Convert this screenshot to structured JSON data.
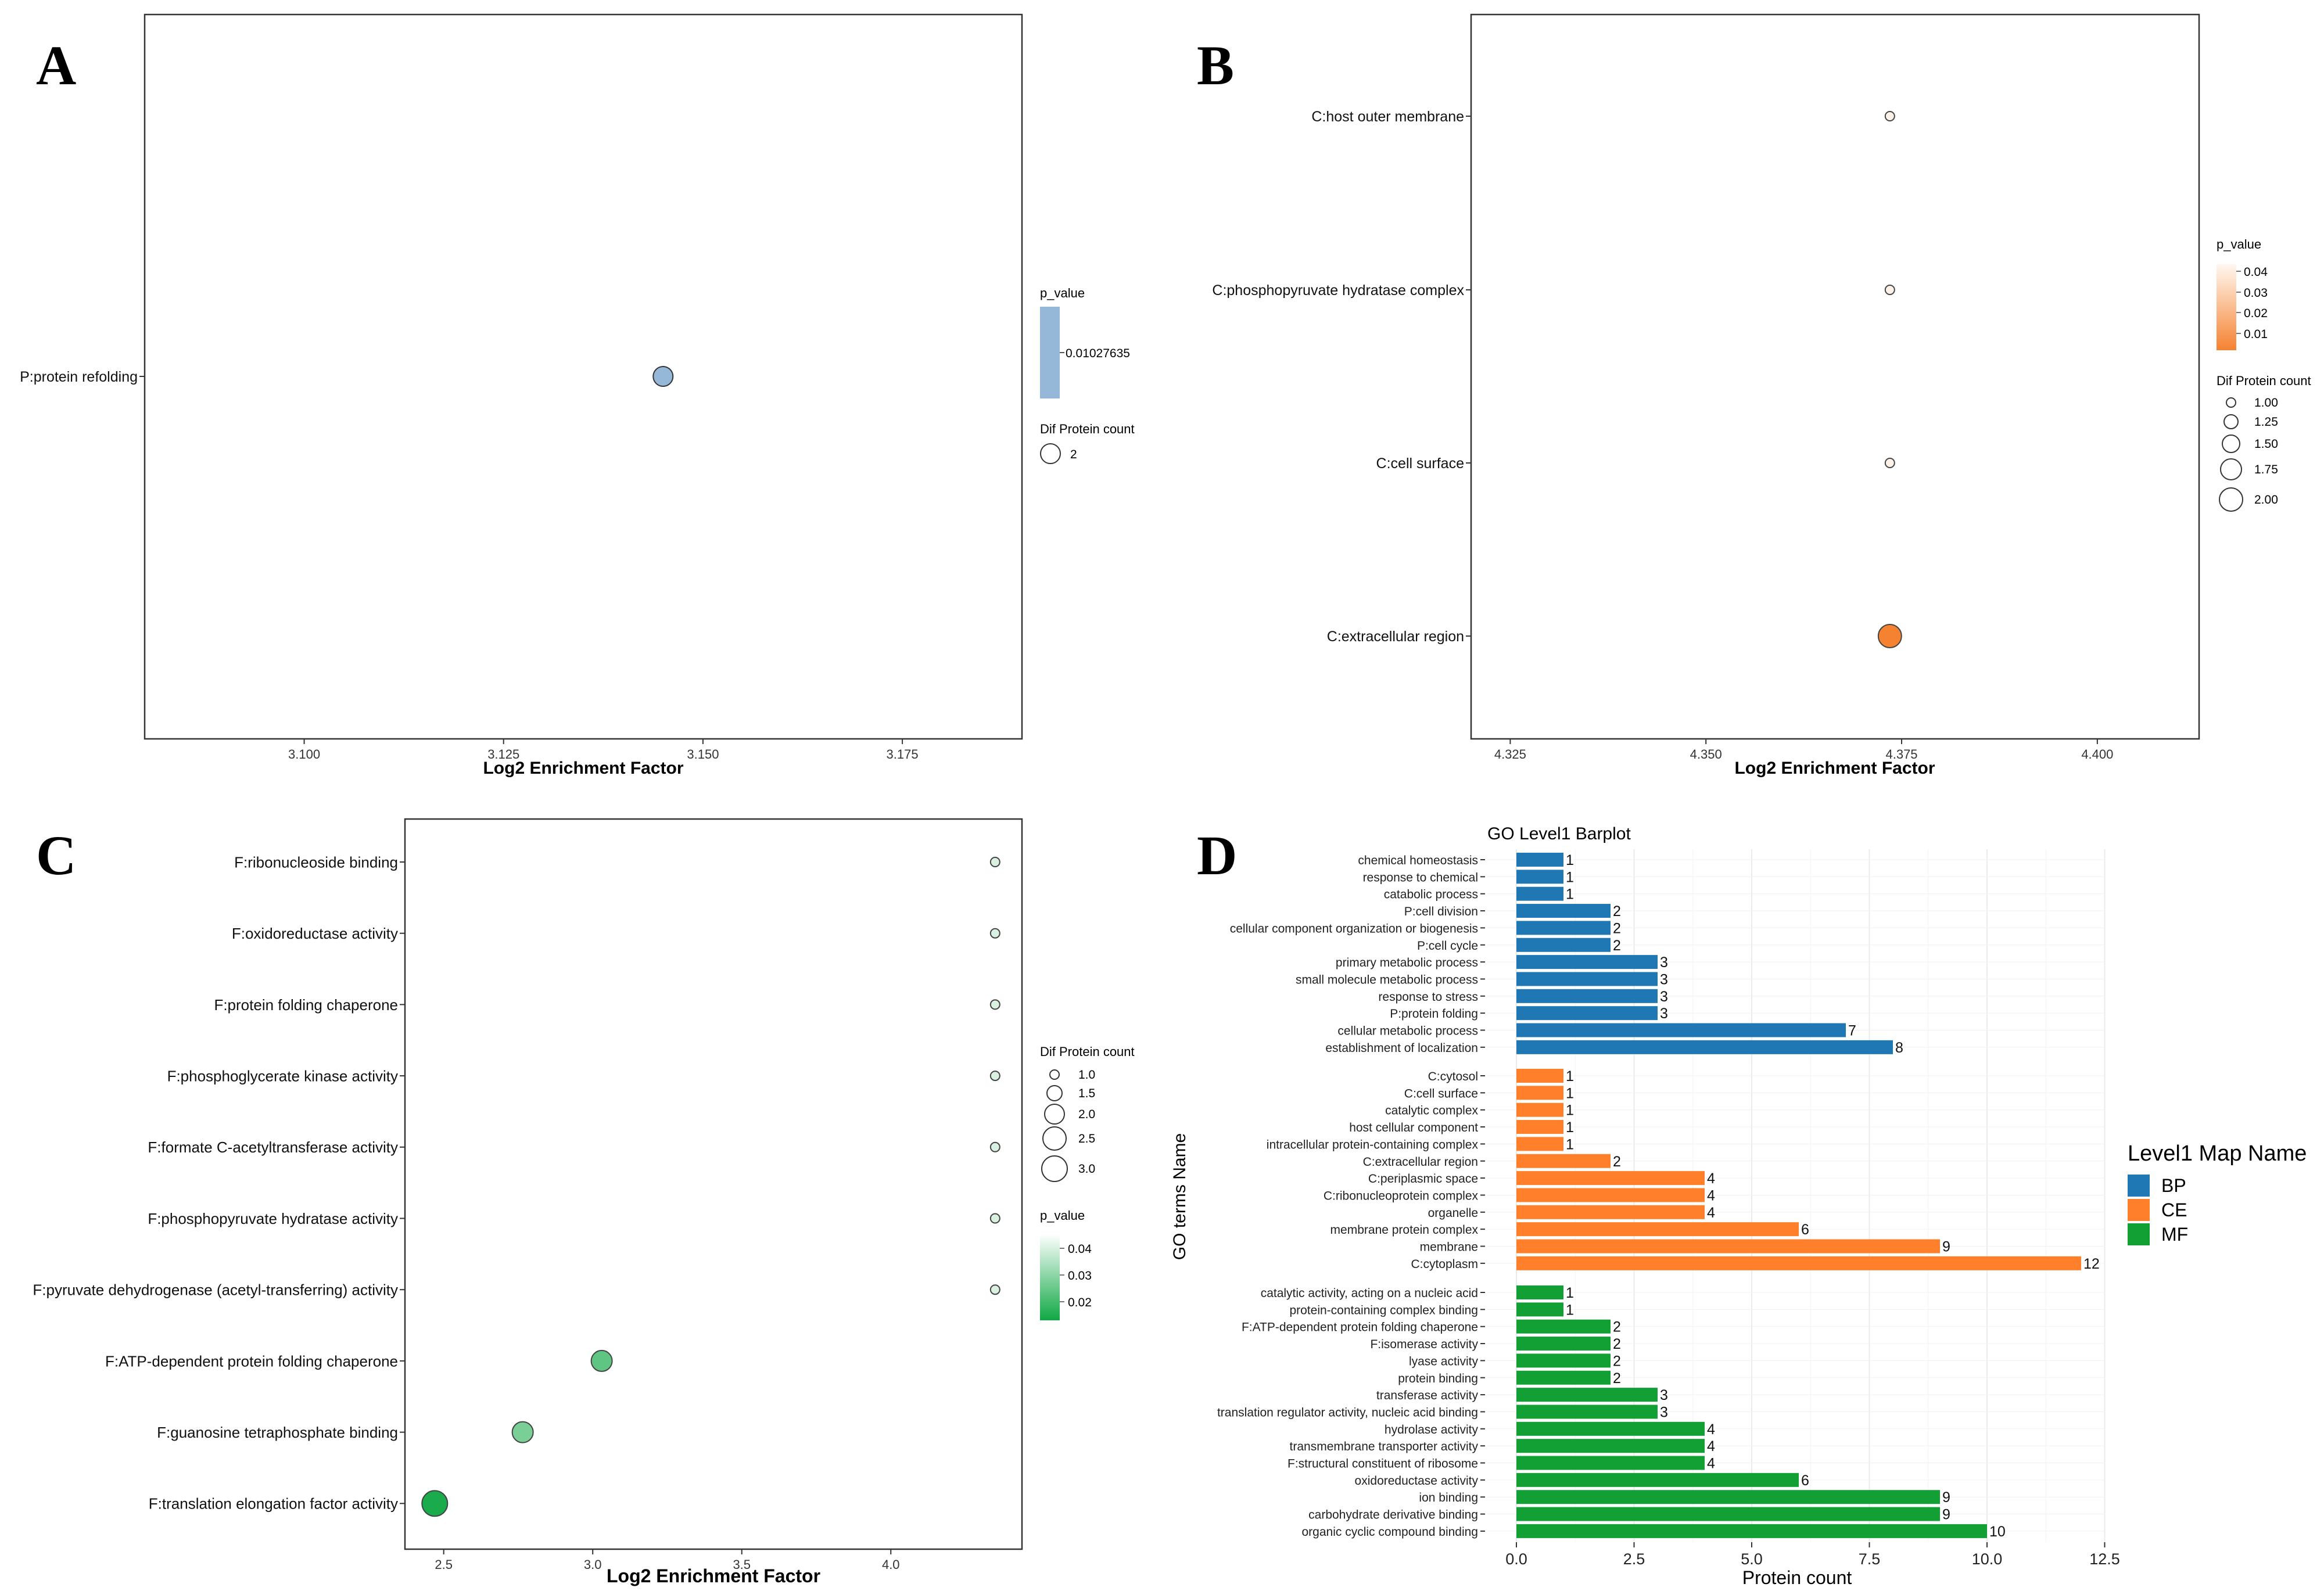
{
  "chart_data": [
    {
      "panel": "A",
      "type": "scatter",
      "xlabel": "Log2 Enrichment Factor",
      "xlim": [
        3.08,
        3.19
      ],
      "xticks": [
        3.1,
        3.125,
        3.15,
        3.175
      ],
      "xtick_labels": [
        "3.100",
        "3.125",
        "3.150",
        "3.175"
      ],
      "categories": [
        "P:protein refolding"
      ],
      "points": [
        {
          "term": "P:protein refolding",
          "x": 3.145,
          "count": 2,
          "p_value": 0.01027635
        }
      ],
      "legend": {
        "color_title": "p_value",
        "color_label": "0.01027635",
        "color": "#96b8d8",
        "size_title": "Dif Protein count",
        "size_labels": [
          "2"
        ]
      }
    },
    {
      "panel": "B",
      "type": "scatter",
      "xlabel": "Log2 Enrichment Factor",
      "xlim": [
        4.32,
        4.413
      ],
      "xticks": [
        4.325,
        4.35,
        4.375,
        4.4
      ],
      "xtick_labels": [
        "4.325",
        "4.350",
        "4.375",
        "4.400"
      ],
      "categories": [
        "C:host outer membrane",
        "C:phosphopyruvate hydratase complex",
        "C:cell surface",
        "C:extracellular region"
      ],
      "points": [
        {
          "term": "C:host outer membrane",
          "x": 4.3735,
          "count": 1,
          "p_value": 0.045
        },
        {
          "term": "C:phosphopyruvate hydratase complex",
          "x": 4.3735,
          "count": 1,
          "p_value": 0.045
        },
        {
          "term": "C:cell surface",
          "x": 4.3735,
          "count": 1,
          "p_value": 0.045
        },
        {
          "term": "C:extracellular region",
          "x": 4.3735,
          "count": 2,
          "p_value": 0.005
        }
      ],
      "legend": {
        "color_title": "p_value",
        "color_labels": [
          "0.04",
          "0.03",
          "0.02",
          "0.01"
        ],
        "color_low": "#f58231",
        "color_high": "#ffffff",
        "size_title": "Dif Protein count",
        "size_labels": [
          "1.00",
          "1.25",
          "1.50",
          "1.75",
          "2.00"
        ]
      }
    },
    {
      "panel": "C",
      "type": "scatter",
      "xlabel": "Log2 Enrichment Factor",
      "xlim": [
        2.37,
        4.44
      ],
      "xticks": [
        2.5,
        3.0,
        3.5,
        4.0
      ],
      "xtick_labels": [
        "2.5",
        "3.0",
        "3.5",
        "4.0"
      ],
      "categories": [
        "F:ribonucleoside binding",
        "F:oxidoreductase activity",
        "F:protein folding chaperone",
        "F:phosphoglycerate kinase activity",
        "F:formate C-acetyltransferase activity",
        "F:phosphopyruvate hydratase activity",
        "F:pyruvate dehydrogenase (acetyl-transferring) activity",
        "F:ATP-dependent protein folding chaperone",
        "F:guanosine tetraphosphate binding",
        "F:translation elongation factor activity"
      ],
      "points": [
        {
          "term": "F:ribonucleoside binding",
          "x": 4.35,
          "count": 1,
          "p_value": 0.048
        },
        {
          "term": "F:oxidoreductase activity",
          "x": 4.35,
          "count": 1,
          "p_value": 0.048
        },
        {
          "term": "F:protein folding chaperone",
          "x": 4.35,
          "count": 1,
          "p_value": 0.048
        },
        {
          "term": "F:phosphoglycerate kinase activity",
          "x": 4.35,
          "count": 1,
          "p_value": 0.048
        },
        {
          "term": "F:formate C-acetyltransferase activity",
          "x": 4.35,
          "count": 1,
          "p_value": 0.048
        },
        {
          "term": "F:phosphopyruvate hydratase activity",
          "x": 4.35,
          "count": 1,
          "p_value": 0.048
        },
        {
          "term": "F:pyruvate dehydrogenase (acetyl-transferring) activity",
          "x": 4.35,
          "count": 1,
          "p_value": 0.048
        },
        {
          "term": "F:ATP-dependent protein folding chaperone",
          "x": 3.03,
          "count": 2,
          "p_value": 0.025
        },
        {
          "term": "F:guanosine tetraphosphate binding",
          "x": 2.765,
          "count": 2,
          "p_value": 0.03
        },
        {
          "term": "F:translation elongation factor activity",
          "x": 2.47,
          "count": 3,
          "p_value": 0.012
        }
      ],
      "legend": {
        "size_title": "Dif Protein count",
        "size_labels": [
          "1.0",
          "1.5",
          "2.0",
          "2.5",
          "3.0"
        ],
        "color_title": "p_value",
        "color_labels": [
          "0.04",
          "0.03",
          "0.02"
        ],
        "color_low": "#0fa844",
        "color_high": "#ffffff"
      }
    },
    {
      "panel": "D",
      "type": "bar",
      "orientation": "horizontal",
      "title": "GO Level1 Barplot",
      "xlabel": "Protein count",
      "ylabel": "GO terms Name",
      "xlim": [
        -0.6,
        12.5
      ],
      "xticks": [
        0,
        2.5,
        5,
        7.5,
        10,
        12.5
      ],
      "xtick_labels": [
        "0.0",
        "2.5",
        "5.0",
        "7.5",
        "10.0",
        "12.5"
      ],
      "legend_title": "Level1 Map Name",
      "series": [
        {
          "name": "BP",
          "color": "#1f77b4",
          "items": [
            {
              "term": "chemical homeostasis",
              "value": 1
            },
            {
              "term": "response to chemical",
              "value": 1
            },
            {
              "term": "catabolic process",
              "value": 1
            },
            {
              "term": "P:cell division",
              "value": 2
            },
            {
              "term": "cellular component organization or biogenesis",
              "value": 2
            },
            {
              "term": "P:cell cycle",
              "value": 2
            },
            {
              "term": "primary metabolic process",
              "value": 3
            },
            {
              "term": "small molecule metabolic process",
              "value": 3
            },
            {
              "term": "response to stress",
              "value": 3
            },
            {
              "term": "P:protein folding",
              "value": 3
            },
            {
              "term": "cellular metabolic process",
              "value": 7
            },
            {
              "term": "establishment of localization",
              "value": 8
            }
          ]
        },
        {
          "name": "CE",
          "color": "#ff7f2a",
          "items": [
            {
              "term": "C:cytosol",
              "value": 1
            },
            {
              "term": "C:cell surface",
              "value": 1
            },
            {
              "term": "catalytic complex",
              "value": 1
            },
            {
              "term": "host cellular component",
              "value": 1
            },
            {
              "term": "intracellular protein-containing complex",
              "value": 1
            },
            {
              "term": "C:extracellular region",
              "value": 2
            },
            {
              "term": "C:periplasmic space",
              "value": 4
            },
            {
              "term": "C:ribonucleoprotein complex",
              "value": 4
            },
            {
              "term": "organelle",
              "value": 4
            },
            {
              "term": "membrane protein complex",
              "value": 6
            },
            {
              "term": "membrane",
              "value": 9
            },
            {
              "term": "C:cytoplasm",
              "value": 12
            }
          ]
        },
        {
          "name": "MF",
          "color": "#12a034",
          "items": [
            {
              "term": "catalytic activity, acting on a nucleic acid",
              "value": 1
            },
            {
              "term": "protein-containing complex binding",
              "value": 1
            },
            {
              "term": "F:ATP-dependent protein folding chaperone",
              "value": 2
            },
            {
              "term": "F:isomerase activity",
              "value": 2
            },
            {
              "term": "lyase activity",
              "value": 2
            },
            {
              "term": "protein binding",
              "value": 2
            },
            {
              "term": "transferase activity",
              "value": 3
            },
            {
              "term": "translation regulator activity, nucleic acid binding",
              "value": 3
            },
            {
              "term": "hydrolase activity",
              "value": 4
            },
            {
              "term": "transmembrane transporter activity",
              "value": 4
            },
            {
              "term": "F:structural constituent of ribosome",
              "value": 4
            },
            {
              "term": "oxidoreductase activity",
              "value": 6
            },
            {
              "term": "ion binding",
              "value": 9
            },
            {
              "term": "carbohydrate derivative binding",
              "value": 9
            },
            {
              "term": "organic cyclic compound binding",
              "value": 10
            }
          ]
        }
      ]
    }
  ]
}
